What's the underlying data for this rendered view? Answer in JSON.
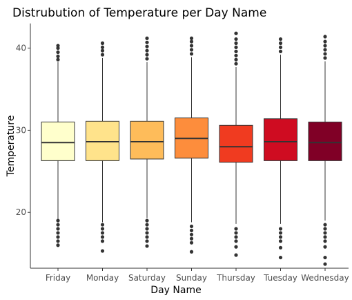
{
  "chart_data": {
    "type": "box",
    "title": "Distrubution of Temperature per Day Name",
    "xlabel": "Day Name",
    "ylabel": "Temperature",
    "ylim": [
      13.2,
      43.0
    ],
    "y_ticks": [
      20,
      30,
      40
    ],
    "grid": false,
    "legend": "none",
    "box_edge_color": "#333333",
    "outlier_color": "#333333",
    "categories": [
      "Friday",
      "Monday",
      "Saturday",
      "Sunday",
      "Thursday",
      "Tuesday",
      "Wednesday"
    ],
    "boxes": [
      {
        "category": "Friday",
        "color": "#FFFFCC",
        "whisker_low": 19.2,
        "q1": 26.3,
        "median": 28.5,
        "q3": 31.0,
        "whisker_high": 38.3,
        "outliers_low": [
          16.0,
          16.5,
          17.0,
          17.5,
          18.0,
          18.5,
          19.0
        ],
        "outliers_high": [
          38.6,
          39.0,
          39.5,
          40.0,
          40.3
        ]
      },
      {
        "category": "Monday",
        "color": "#FFE38B",
        "whisker_low": 18.8,
        "q1": 26.3,
        "median": 28.6,
        "q3": 31.1,
        "whisker_high": 38.8,
        "outliers_low": [
          15.3,
          16.5,
          17.0,
          17.5,
          18.0,
          18.5
        ],
        "outliers_high": [
          39.2,
          39.7,
          40.1,
          40.6
        ]
      },
      {
        "category": "Saturday",
        "color": "#FEBC5A",
        "whisker_low": 19.3,
        "q1": 26.5,
        "median": 28.6,
        "q3": 31.1,
        "whisker_high": 38.3,
        "outliers_low": [
          15.9,
          16.5,
          17.0,
          17.5,
          18.0,
          18.5,
          19.0
        ],
        "outliers_high": [
          38.7,
          39.2,
          39.7,
          40.2,
          40.7,
          41.2
        ]
      },
      {
        "category": "Sunday",
        "color": "#FD8D3C",
        "whisker_low": 18.8,
        "q1": 26.6,
        "median": 29.0,
        "q3": 31.5,
        "whisker_high": 38.9,
        "outliers_low": [
          15.2,
          16.3,
          16.8,
          17.3,
          17.8,
          18.3
        ],
        "outliers_high": [
          39.3,
          39.8,
          40.3,
          40.8,
          41.2
        ]
      },
      {
        "category": "Thursday",
        "color": "#F03B20",
        "whisker_low": 18.6,
        "q1": 26.1,
        "median": 28.0,
        "q3": 30.6,
        "whisker_high": 37.7,
        "outliers_low": [
          14.8,
          15.8,
          16.5,
          17.0,
          17.5,
          18.0
        ],
        "outliers_high": [
          38.1,
          38.6,
          39.1,
          39.6,
          40.1,
          40.6,
          41.1,
          41.8
        ]
      },
      {
        "category": "Tuesday",
        "color": "#CF0C21",
        "whisker_low": 18.6,
        "q1": 26.3,
        "median": 28.6,
        "q3": 31.4,
        "whisker_high": 39.2,
        "outliers_low": [
          14.5,
          15.7,
          16.5,
          17.0,
          17.5,
          18.0
        ],
        "outliers_high": [
          39.6,
          40.1,
          40.6,
          41.1
        ]
      },
      {
        "category": "Wednesday",
        "color": "#800026",
        "whisker_low": 19.0,
        "q1": 26.3,
        "median": 28.5,
        "q3": 31.0,
        "whisker_high": 38.4,
        "outliers_low": [
          13.7,
          14.5,
          15.8,
          16.5,
          17.0,
          17.5,
          18.0,
          18.5
        ],
        "outliers_high": [
          38.8,
          39.3,
          39.8,
          40.3,
          40.8,
          41.4
        ]
      }
    ]
  }
}
